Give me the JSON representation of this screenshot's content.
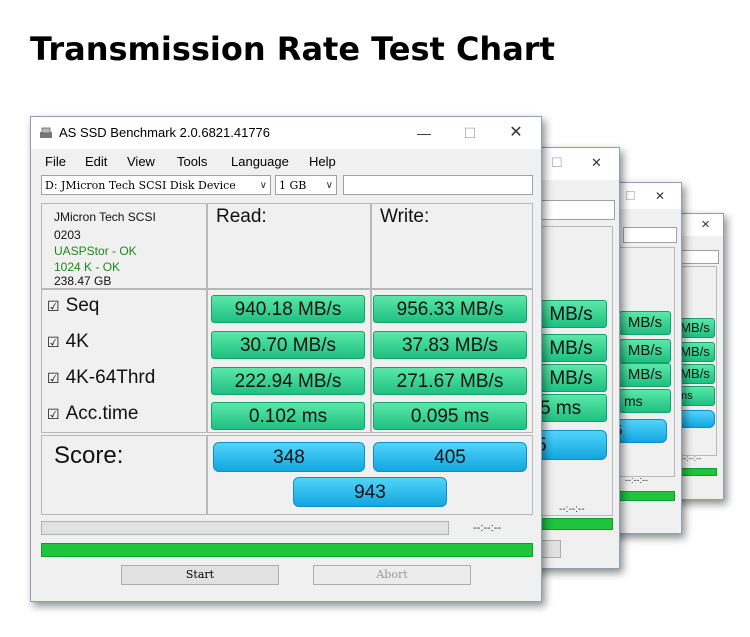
{
  "headline": "Transmission Rate Test Chart",
  "window": {
    "title": "AS SSD Benchmark 2.0.6821.41776",
    "minimize_glyph": "—",
    "maximize_glyph": "☐",
    "close_glyph": "✕"
  },
  "menu": [
    "File",
    "Edit",
    "View",
    "Tools",
    "Language",
    "Help"
  ],
  "drive_select": "D: JMicron Tech SCSI Disk Device",
  "size_select": "1 GB",
  "device_info": {
    "model": "JMicron Tech SCSI",
    "firmware": "0203",
    "driver": "UASPStor - OK",
    "alignment": "1024 K - OK",
    "capacity": "238.47 GB"
  },
  "headers": {
    "read": "Read:",
    "write": "Write:"
  },
  "tests": [
    {
      "label": "Seq",
      "read": "940.18 MB/s",
      "write": "956.33 MB/s"
    },
    {
      "label": "4K",
      "read": "30.70 MB/s",
      "write": "37.83 MB/s"
    },
    {
      "label": "4K-64Thrd",
      "read": "222.94 MB/s",
      "write": "271.67 MB/s"
    },
    {
      "label": "Acc.time",
      "read": "0.102 ms",
      "write": "0.095 ms"
    }
  ],
  "checkbox_glyph": "☑",
  "score": {
    "label": "Score:",
    "read": "348",
    "write": "405",
    "total": "943"
  },
  "progress_time": "--:--:--",
  "progress_fraction": 1.0,
  "buttons": {
    "start": "Start",
    "abort": "Abort"
  },
  "back_windows": {
    "w2": {
      "rows": [
        "MB/s",
        "MB/s",
        "MB/s",
        "5 ms"
      ],
      "score": "5",
      "time": "--:--:--"
    },
    "w3": {
      "rows": [
        "MB/s",
        "MB/s",
        "MB/s",
        "ms"
      ],
      "score": "5",
      "time": "--:--:--"
    },
    "w4": {
      "rows": [
        "MB/s",
        "MB/s",
        "MB/s",
        "ms"
      ],
      "time": "--:--:--"
    }
  },
  "colors": {
    "accent_green": "#1ec082",
    "score_blue": "#12a6e0",
    "progress_green": "#1fc43e",
    "driver_ok": "#1a8a1a"
  }
}
